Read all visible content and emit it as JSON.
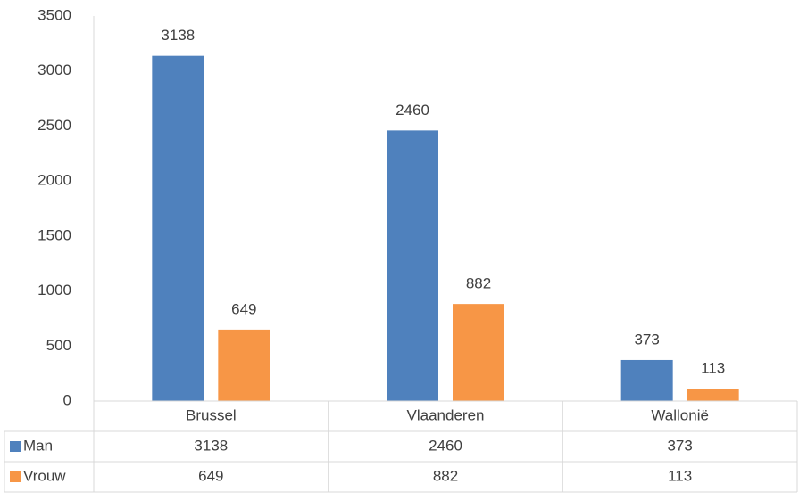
{
  "chart_data": {
    "type": "bar",
    "categories": [
      "Brussel",
      "Vlaanderen",
      "Wallonië"
    ],
    "series": [
      {
        "name": "Man",
        "color": "#4f81bd",
        "values": [
          3138,
          2460,
          373
        ]
      },
      {
        "name": "Vrouw",
        "color": "#f79646",
        "values": [
          649,
          882,
          113
        ]
      }
    ],
    "ylim": [
      0,
      3500
    ],
    "yticks": [
      0,
      500,
      1000,
      1500,
      2000,
      2500,
      3000,
      3500
    ],
    "grid": false,
    "data_table": true
  }
}
